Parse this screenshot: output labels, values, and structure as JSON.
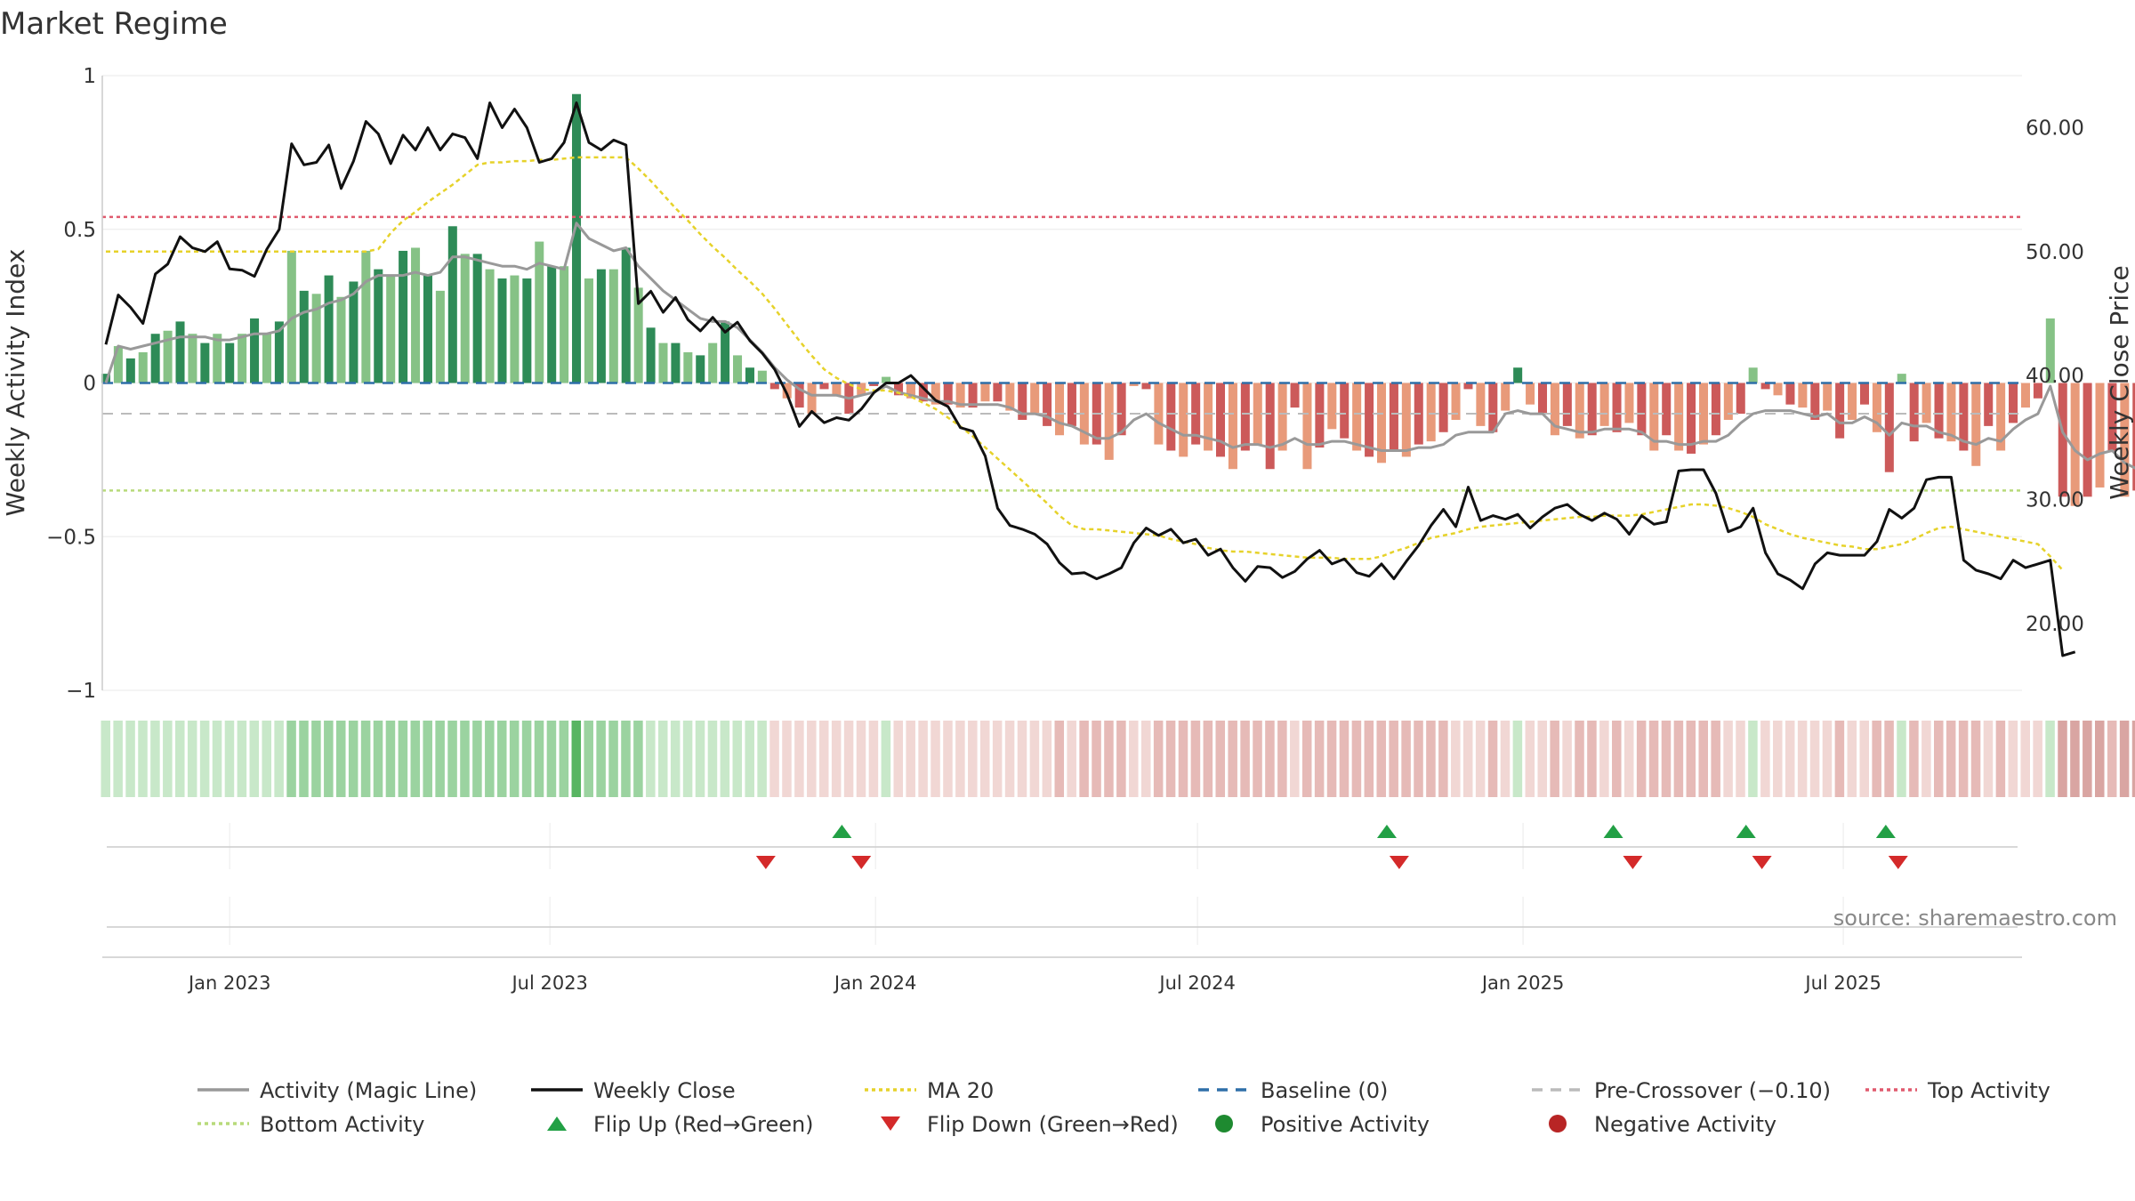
{
  "title": "Market Regime",
  "source": "source: sharemaestro.com",
  "colors": {
    "activity_line": "#999999",
    "close_line": "#111111",
    "ma_line": "#e6d22a",
    "baseline": "#2e6fa8",
    "precross": "#bbbbbb",
    "top_activity": "#e05a6e",
    "bottom_activity": "#b7da7a",
    "green_strong": "#2e8b57",
    "green_light": "#86c286",
    "red_strong": "#cc5a5a",
    "red_light": "#e89a7a",
    "flip_up": "#22a045",
    "flip_down": "#d42a2a",
    "positive": "#1e8a30",
    "negative": "#b82525"
  },
  "chart_data": {
    "type": "bar+line",
    "title": "Market Regime",
    "y_left_label": "Weekly Activity Index",
    "y_right_label": "Weekly Close Price",
    "y_left_ticks": [
      "1",
      "0.5",
      "0",
      "−0.5",
      "−1"
    ],
    "y_left_range": [
      -1,
      1
    ],
    "y_right_ticks": [
      "60.00",
      "50.00",
      "40.00",
      "30.00",
      "20.00"
    ],
    "y_right_range": [
      14.6,
      64.2
    ],
    "x_ticks": [
      "Jan 2023",
      "Jul 2023",
      "Jan 2024",
      "Jul 2024",
      "Jan 2025",
      "Jul 2025"
    ],
    "x_tick_dates": [
      "2023-01-01",
      "2023-07-01",
      "2024-01-01",
      "2024-07-01",
      "2025-01-01",
      "2025-07-01"
    ],
    "x_start": "2022-10-21",
    "x_end": "2025-10-10",
    "first_week": "2022-10-23",
    "week_step_days": 7,
    "levels": {
      "top_activity": 0.54,
      "bottom_activity": -0.35,
      "pre_crossover": -0.1,
      "baseline": 0
    },
    "activity": [
      0.03,
      0.12,
      0.08,
      0.1,
      0.16,
      0.17,
      0.2,
      0.16,
      0.13,
      0.16,
      0.13,
      0.16,
      0.21,
      0.16,
      0.2,
      0.43,
      0.3,
      0.29,
      0.35,
      0.28,
      0.33,
      0.43,
      0.37,
      0.35,
      0.43,
      0.44,
      0.35,
      0.3,
      0.51,
      0.42,
      0.42,
      0.37,
      0.34,
      0.35,
      0.34,
      0.46,
      0.38,
      0.38,
      0.94,
      0.34,
      0.37,
      0.37,
      0.44,
      0.31,
      0.18,
      0.13,
      0.13,
      0.1,
      0.09,
      0.13,
      0.2,
      0.09,
      0.05,
      0.04,
      -0.02,
      -0.05,
      -0.08,
      -0.1,
      -0.02,
      -0.04,
      -0.1,
      -0.04,
      -0.01,
      0.02,
      -0.04,
      -0.05,
      -0.06,
      -0.07,
      -0.07,
      -0.08,
      -0.08,
      -0.06,
      -0.06,
      -0.09,
      -0.12,
      -0.1,
      -0.14,
      -0.17,
      -0.14,
      -0.2,
      -0.2,
      -0.25,
      -0.17,
      -0.01,
      -0.02,
      -0.2,
      -0.22,
      -0.24,
      -0.2,
      -0.22,
      -0.24,
      -0.28,
      -0.22,
      -0.2,
      -0.28,
      -0.22,
      -0.08,
      -0.28,
      -0.21,
      -0.15,
      -0.18,
      -0.22,
      -0.24,
      -0.26,
      -0.22,
      -0.24,
      -0.2,
      -0.19,
      -0.16,
      -0.12,
      -0.02,
      -0.14,
      -0.16,
      -0.09,
      0.05,
      -0.07,
      -0.1,
      -0.17,
      -0.14,
      -0.18,
      -0.17,
      -0.14,
      -0.16,
      -0.13,
      -0.17,
      -0.22,
      -0.17,
      -0.22,
      -0.23,
      -0.2,
      -0.17,
      -0.12,
      -0.1,
      0.05,
      -0.02,
      -0.04,
      -0.07,
      -0.08,
      -0.12,
      -0.09,
      -0.18,
      -0.12,
      -0.07,
      -0.16,
      -0.29,
      0.03,
      -0.19,
      -0.13,
      -0.18,
      -0.19,
      -0.22,
      -0.27,
      -0.14,
      -0.22,
      -0.13,
      -0.08,
      -0.05,
      0.21,
      -0.37,
      -0.4,
      -0.37,
      -0.34,
      -0.22,
      -0.37,
      -0.35,
      -0.4,
      -0.23
    ],
    "magic_line": [
      0,
      0.12,
      0.11,
      0.12,
      0.13,
      0.14,
      0.15,
      0.15,
      0.15,
      0.14,
      0.14,
      0.15,
      0.16,
      0.16,
      0.17,
      0.21,
      0.23,
      0.24,
      0.26,
      0.27,
      0.29,
      0.33,
      0.35,
      0.35,
      0.35,
      0.36,
      0.35,
      0.36,
      0.41,
      0.41,
      0.4,
      0.39,
      0.38,
      0.38,
      0.37,
      0.39,
      0.38,
      0.37,
      0.52,
      0.47,
      0.45,
      0.43,
      0.44,
      0.38,
      0.34,
      0.3,
      0.27,
      0.24,
      0.21,
      0.2,
      0.2,
      0.18,
      0.14,
      0.1,
      0.05,
      0.01,
      -0.02,
      -0.04,
      -0.04,
      -0.04,
      -0.05,
      -0.04,
      -0.03,
      -0.01,
      -0.03,
      -0.04,
      -0.05,
      -0.06,
      -0.06,
      -0.07,
      -0.07,
      -0.07,
      -0.07,
      -0.08,
      -0.1,
      -0.1,
      -0.11,
      -0.13,
      -0.14,
      -0.16,
      -0.18,
      -0.18,
      -0.16,
      -0.12,
      -0.1,
      -0.13,
      -0.15,
      -0.17,
      -0.17,
      -0.18,
      -0.19,
      -0.21,
      -0.2,
      -0.2,
      -0.21,
      -0.2,
      -0.18,
      -0.2,
      -0.2,
      -0.19,
      -0.19,
      -0.2,
      -0.21,
      -0.22,
      -0.22,
      -0.22,
      -0.21,
      -0.21,
      -0.2,
      -0.17,
      -0.16,
      -0.16,
      -0.16,
      -0.1,
      -0.09,
      -0.1,
      -0.1,
      -0.14,
      -0.15,
      -0.16,
      -0.16,
      -0.15,
      -0.15,
      -0.15,
      -0.16,
      -0.19,
      -0.19,
      -0.2,
      -0.2,
      -0.19,
      -0.19,
      -0.17,
      -0.13,
      -0.1,
      -0.09,
      -0.09,
      -0.09,
      -0.1,
      -0.11,
      -0.1,
      -0.13,
      -0.13,
      -0.11,
      -0.13,
      -0.17,
      -0.13,
      -0.14,
      -0.14,
      -0.16,
      -0.17,
      -0.19,
      -0.2,
      -0.18,
      -0.19,
      -0.15,
      -0.12,
      -0.1,
      -0.01,
      -0.16,
      -0.22,
      -0.25,
      -0.23,
      -0.22,
      -0.26,
      -0.28,
      -0.3,
      -0.29
    ],
    "weekly_close": [
      42.5,
      46.5,
      45.5,
      44.2,
      48.2,
      49,
      51.2,
      50.3,
      50,
      50.8,
      48.6,
      48.5,
      48,
      50.2,
      51.8,
      58.7,
      57,
      57.2,
      58.6,
      55.1,
      57.3,
      60.5,
      59.5,
      57.1,
      59.4,
      58.2,
      60,
      58.2,
      59.5,
      59.2,
      57.5,
      62,
      60,
      61.5,
      60,
      57.2,
      57.5,
      58.8,
      62,
      58.8,
      58.2,
      59,
      58.6,
      45.8,
      46.8,
      45.1,
      46.3,
      44.5,
      43.6,
      44.7,
      43.5,
      44.3,
      42.8,
      41.8,
      40.5,
      38.5,
      35.9,
      37.1,
      36.2,
      36.6,
      36.4,
      37.3,
      38.6,
      39.4,
      39.4,
      40,
      39,
      38,
      37.5,
      35.8,
      35.5,
      33.5,
      29.3,
      27.9,
      27.6,
      27.2,
      26.4,
      24.9,
      24,
      24.1,
      23.6,
      24,
      24.5,
      26.5,
      27.7,
      27.1,
      27.6,
      26.5,
      26.8,
      25.5,
      26,
      24.5,
      23.4,
      24.6,
      24.5,
      23.7,
      24.2,
      25.2,
      25.9,
      24.8,
      25.2,
      24.1,
      23.8,
      24.8,
      23.6,
      25,
      26.3,
      27.9,
      29.2,
      27.8,
      31,
      28.3,
      28.7,
      28.4,
      28.8,
      27.7,
      28.6,
      29.3,
      29.6,
      28.8,
      28.3,
      28.9,
      28.4,
      27.2,
      28.7,
      28,
      28.2,
      32.3,
      32.4,
      32.4,
      30.5,
      27.4,
      27.8,
      29.3,
      25.7,
      24,
      23.5,
      22.8,
      24.8,
      25.7,
      25.5,
      25.5,
      25.5,
      26.6,
      29.2,
      28.5,
      29.3,
      31.6,
      31.8,
      31.8,
      25.1,
      24.3,
      24,
      23.6,
      25.1,
      24.5,
      24.8,
      25.1,
      17.4,
      17.7
    ],
    "ma20": [
      50,
      50,
      50,
      50,
      50,
      50,
      50,
      50,
      50,
      50,
      50,
      50,
      50,
      50,
      50,
      50,
      50,
      50,
      50,
      50,
      50,
      50,
      50.2,
      51.5,
      52.5,
      53.2,
      54,
      54.7,
      55.4,
      56.2,
      57,
      57.2,
      57.2,
      57.3,
      57.3,
      57.4,
      57.4,
      57.5,
      57.6,
      57.6,
      57.6,
      57.6,
      57.6,
      56.7,
      55.7,
      54.6,
      53.5,
      52.5,
      51.4,
      50.4,
      49.5,
      48.5,
      47.6,
      46.6,
      45.4,
      44.1,
      42.8,
      41.6,
      40.5,
      39.8,
      39.3,
      38.9,
      38.8,
      38.8,
      38.6,
      38.3,
      37.8,
      37.3,
      36.6,
      35.9,
      35.1,
      34.2,
      33.3,
      32.4,
      31.5,
      30.6,
      29.7,
      28.7,
      27.9,
      27.6,
      27.6,
      27.5,
      27.4,
      27.3,
      27.2,
      27.1,
      26.8,
      26.6,
      26.4,
      26.1,
      25.9,
      25.8,
      25.8,
      25.7,
      25.6,
      25.5,
      25.4,
      25.3,
      25.3,
      25.3,
      25.2,
      25.2,
      25.2,
      25.4,
      25.8,
      26.1,
      26.5,
      26.9,
      27.1,
      27.3,
      27.6,
      27.8,
      27.9,
      28,
      28.1,
      28.2,
      28.3,
      28.4,
      28.5,
      28.6,
      28.6,
      28.7,
      28.7,
      28.7,
      28.8,
      29,
      29.2,
      29.4,
      29.6,
      29.6,
      29.5,
      29.3,
      29,
      28.6,
      28,
      27.6,
      27.2,
      26.9,
      26.7,
      26.5,
      26.3,
      26.2,
      26,
      26,
      26.2,
      26.4,
      26.8,
      27.3,
      27.7,
      27.8,
      27.6,
      27.4,
      27.2,
      27,
      26.8,
      26.6,
      26.4,
      25.4,
      24.3
    ],
    "regime_strip": {
      "colors": {
        "gs": "#58b562",
        "gm": "#9bd3a0",
        "gl": "#c8e8c9",
        "rs": "#d9a5a2",
        "rm": "#e6bab7",
        "rl": "#f1d7d4"
      }
    },
    "flip_up_dates": [
      "2023-12-13",
      "2024-10-16",
      "2025-02-21",
      "2025-05-07",
      "2025-07-25"
    ],
    "flip_down_dates": [
      "2023-10-31",
      "2023-12-24",
      "2024-10-23",
      "2025-03-04",
      "2025-05-16",
      "2025-08-01"
    ]
  },
  "legend": [
    {
      "label": "Activity (Magic Line)",
      "kind": "line",
      "color": "#999999",
      "dash": ""
    },
    {
      "label": "Weekly Close",
      "kind": "line",
      "color": "#111111",
      "dash": ""
    },
    {
      "label": "MA 20",
      "kind": "line",
      "color": "#e6d22a",
      "dash": "4,4"
    },
    {
      "label": "Baseline (0)",
      "kind": "line",
      "color": "#2e6fa8",
      "dash": "12,9"
    },
    {
      "label": "Pre-Crossover (−0.10)",
      "kind": "line",
      "color": "#bbbbbb",
      "dash": "12,9"
    },
    {
      "label": "Top Activity",
      "kind": "line",
      "color": "#e05a6e",
      "dash": "4,4"
    },
    {
      "label": "Bottom Activity",
      "kind": "line",
      "color": "#b7da7a",
      "dash": "4,4"
    },
    {
      "label": "Flip Up (Red→Green)",
      "kind": "tri-up",
      "color": "#22a045",
      "dash": ""
    },
    {
      "label": "Flip Down (Green→Red)",
      "kind": "tri-down",
      "color": "#d42a2a",
      "dash": ""
    },
    {
      "label": "Positive Activity",
      "kind": "dot",
      "color": "#1e8a30",
      "dash": ""
    },
    {
      "label": "Negative Activity",
      "kind": "dot",
      "color": "#b82525",
      "dash": ""
    }
  ]
}
